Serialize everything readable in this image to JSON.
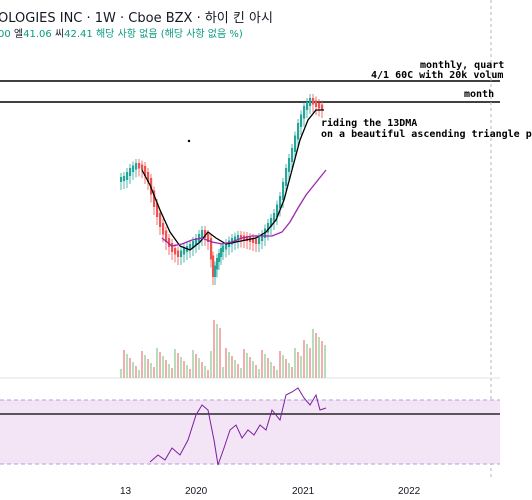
{
  "header": {
    "title": "OLOGIES INC · 1W · Cboe BZX · 하이 킨 아시",
    "ohlc_prefix": "00",
    "ohlc_low_label": "엘",
    "ohlc_low": "41.06",
    "ohlc_close_label": "씨",
    "ohlc_close": "42.41",
    "ohlc_change": "해당 사항 없음 (해당 사항 없음 %)"
  },
  "annotations": {
    "line1": "monthly, quart",
    "line2": "4/1 60C with 20k volum",
    "line3": "month",
    "note1": "riding the 13DMA",
    "note2": "on a beautiful ascending triangle p"
  },
  "time_axis": {
    "labels": [
      "13",
      "2020",
      "2021",
      "2022"
    ]
  },
  "colors": {
    "up": "#26a69a",
    "down": "#ef5350",
    "ma_short": "#000000",
    "ma_long": "#9c27b0",
    "rsi_line": "#7b1fa2",
    "rsi_band": "#f3e5f5"
  },
  "icons": [
    "chart-canvas"
  ]
}
